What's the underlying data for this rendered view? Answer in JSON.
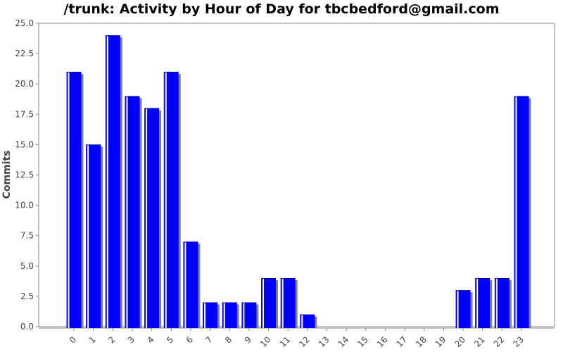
{
  "chart_data": {
    "type": "bar",
    "title": "/trunk: Activity by Hour of Day for tbcbedford@gmail.com",
    "xlabel": "",
    "ylabel": "Commits",
    "categories": [
      "0",
      "1",
      "2",
      "3",
      "4",
      "5",
      "6",
      "7",
      "8",
      "9",
      "10",
      "11",
      "12",
      "13",
      "14",
      "15",
      "16",
      "17",
      "18",
      "19",
      "20",
      "21",
      "22",
      "23"
    ],
    "values": [
      21,
      15,
      24,
      19,
      18,
      21,
      7,
      2,
      2,
      2,
      4,
      4,
      1,
      0,
      0,
      0,
      0,
      0,
      0,
      0,
      3,
      4,
      4,
      19
    ],
    "ylim": [
      0,
      25
    ],
    "yticks": [
      "0.0",
      "2.5",
      "5.0",
      "7.5",
      "10.0",
      "12.5",
      "15.0",
      "17.5",
      "20.0",
      "22.5",
      "25.0"
    ],
    "grid": false,
    "legend": "none",
    "colors": {
      "bar": "#0000ff",
      "shadow": "#808080",
      "highlight": "#ffffff",
      "axis": "#888888"
    }
  }
}
